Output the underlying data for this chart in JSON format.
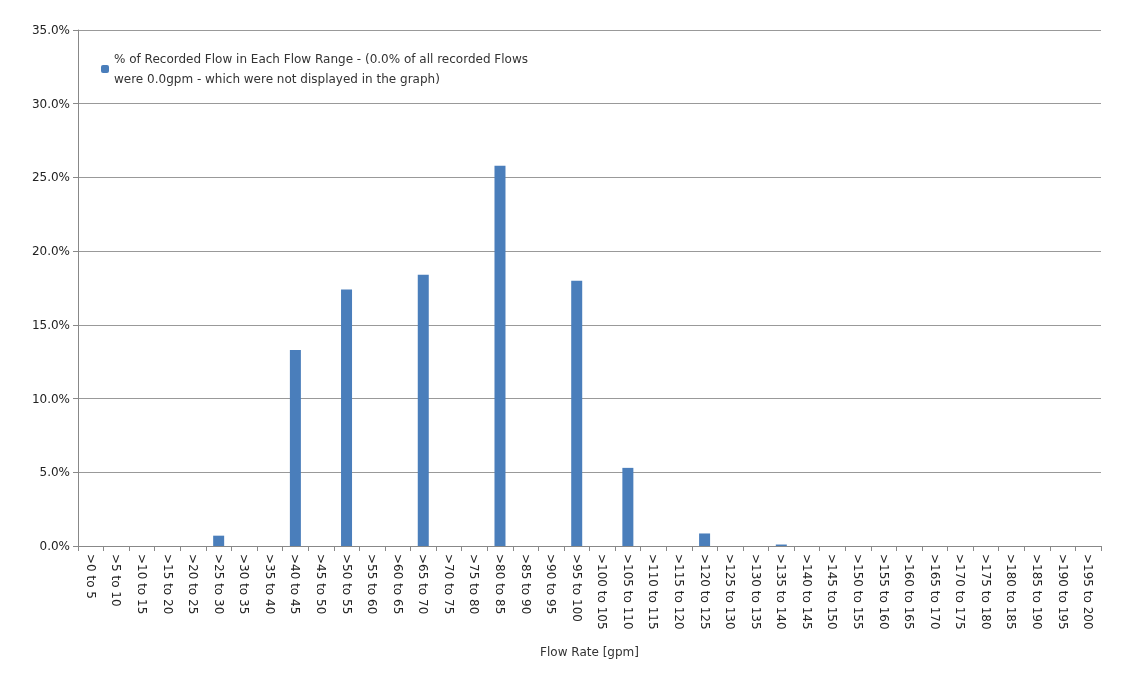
{
  "chart_data": {
    "type": "bar",
    "xlabel": "Flow Rate [gpm]",
    "categories": [
      ">0 to 5",
      ">5 to 10",
      ">10 to 15",
      ">15 to 20",
      ">20 to 25",
      ">25 to 30",
      ">30 to 35",
      ">35 to 40",
      ">40 to 45",
      ">45 to 50",
      ">50 to 55",
      ">55 to 60",
      ">60 to 65",
      ">65 to 70",
      ">70 to 75",
      ">75 to 80",
      ">80 to 85",
      ">85 to 90",
      ">90 to 95",
      ">95 to 100",
      ">100 to 105",
      ">105 to 110",
      ">110 to 115",
      ">115 to 120",
      ">120 to 125",
      ">125 to 130",
      ">130 to 135",
      ">135 to 140",
      ">140 to 145",
      ">145 to 150",
      ">150 to 155",
      ">155 to 160",
      ">160 to 165",
      ">165 to 170",
      ">170 to 175",
      ">175 to 180",
      ">180 to 185",
      ">185 to 190",
      ">190 to 195",
      ">195 to 200"
    ],
    "series": [
      {
        "name": "% of Recorded Flow in Each Flow Range - (0.0% of all recorded Flows were 0.0gpm - which were not displayed in the graph)",
        "color": "#4a7ebb",
        "values": [
          0,
          0,
          0,
          0,
          0,
          0.7,
          0,
          0,
          13.3,
          0,
          17.4,
          0,
          0,
          18.4,
          0,
          0,
          25.8,
          0,
          0,
          18.0,
          0,
          5.3,
          0,
          0,
          0.85,
          0,
          0,
          0.1,
          0,
          0,
          0,
          0,
          0,
          0,
          0,
          0,
          0,
          0,
          0,
          0
        ]
      }
    ],
    "ylim": [
      0,
      35
    ],
    "yticks": [
      {
        "value": 0,
        "label": "0.0%"
      },
      {
        "value": 5,
        "label": "5.0%"
      },
      {
        "value": 10,
        "label": "10.0%"
      },
      {
        "value": 15,
        "label": "15.0%"
      },
      {
        "value": 20,
        "label": "20.0%"
      },
      {
        "value": 25,
        "label": "25.0%"
      },
      {
        "value": 30,
        "label": "30.0%"
      },
      {
        "value": 35,
        "label": "35.0%"
      }
    ],
    "grid": "y",
    "legend": "top left"
  }
}
